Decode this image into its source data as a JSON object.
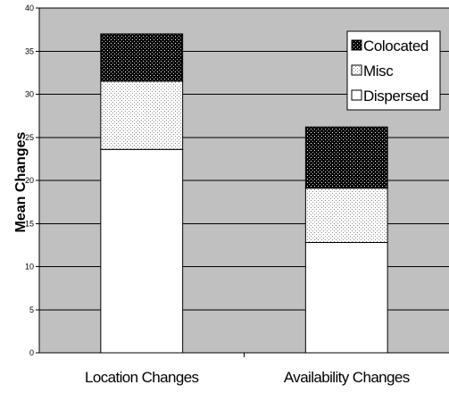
{
  "chart_data": {
    "type": "bar",
    "stacked": true,
    "categories": [
      "Location Changes",
      "Availability Changes"
    ],
    "series": [
      {
        "name": "Dispersed",
        "values": [
          23.6,
          12.8
        ],
        "pattern": "white"
      },
      {
        "name": "Misc",
        "values": [
          7.9,
          6.3
        ],
        "pattern": "light-dots"
      },
      {
        "name": "Colocated",
        "values": [
          5.5,
          7.1
        ],
        "pattern": "dark-dots"
      }
    ],
    "legend_order": [
      "Colocated",
      "Misc",
      "Dispersed"
    ],
    "title": "",
    "xlabel": "",
    "ylabel": "Mean Changes",
    "ylim": [
      0,
      40
    ],
    "yticks": [
      0,
      5,
      10,
      15,
      20,
      25,
      30,
      35,
      40
    ],
    "grid": true,
    "legend_position": "top-right",
    "colors": {
      "plot_background": "#c0c0c0",
      "gridline": "#000000",
      "bar_border": "#000000",
      "white_fill": "#ffffff",
      "light_dot": "#808080",
      "dark_fill": "#000000",
      "dark_dot": "#ffffff"
    }
  }
}
